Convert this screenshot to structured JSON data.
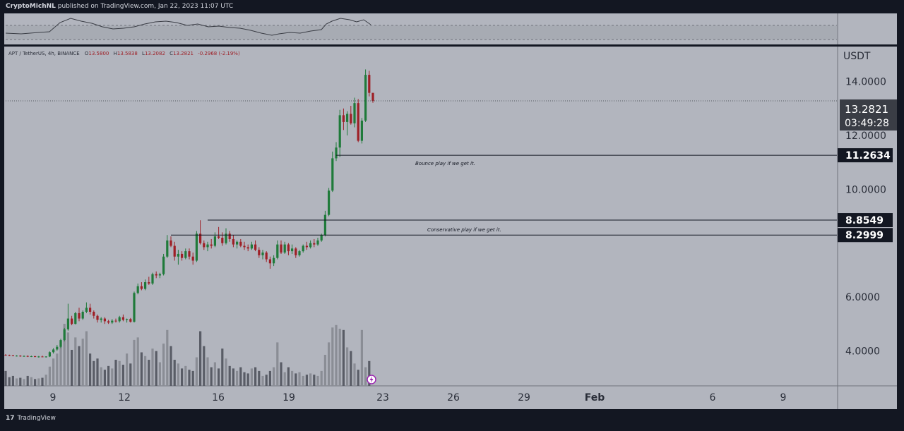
{
  "header": {
    "author": "CryptoMichNL",
    "published_text": "published on TradingView.com, Jan 22, 2023 11:07 UTC"
  },
  "footer": {
    "brand": "TradingView"
  },
  "symbol_line": {
    "label": "APT / TetherUS, 4h, BINANCE",
    "open_label": "O",
    "open": "13.5800",
    "high_label": "H",
    "high": "13.5838",
    "low_label": "L",
    "low": "13.2082",
    "close_label": "C",
    "close": "13.2821",
    "change": "-0.2968 (-2.19%)"
  },
  "colors": {
    "background": "#b2b5be",
    "frame": "#131722",
    "up": "#1f7a3a",
    "down": "#9e1f26",
    "volume_dark": "#595c66",
    "volume_light": "#8a8d95",
    "axis_text": "#2a2e39",
    "badge_bg": "#131722",
    "badge_text": "#ffffff"
  },
  "chart_data": {
    "type": "candlestick",
    "currency": "USDT",
    "y_ticks": [
      "14.0000",
      "12.0000",
      "10.0000",
      "6.0000",
      "4.0000"
    ],
    "x_ticks": [
      "9",
      "12",
      "16",
      "19",
      "23",
      "26",
      "29",
      "Feb",
      "6",
      "9"
    ],
    "ylim": [
      2.7,
      15.3
    ],
    "last_price": {
      "value": "13.2821",
      "countdown": "03:49:28"
    },
    "levels": [
      {
        "value": 11.2634,
        "label": "11.2634",
        "note": "Bounce play if we get it."
      },
      {
        "value": 8.8549,
        "label": "8.8549",
        "note": ""
      },
      {
        "value": 8.2999,
        "label": "8.2999",
        "note": "Conservative play if we get it."
      }
    ],
    "candles": [
      [
        3.85,
        3.88,
        3.82,
        3.84
      ],
      [
        3.84,
        3.86,
        3.8,
        3.83
      ],
      [
        3.83,
        3.85,
        3.8,
        3.81
      ],
      [
        3.81,
        3.84,
        3.79,
        3.82
      ],
      [
        3.82,
        3.84,
        3.78,
        3.8
      ],
      [
        3.8,
        3.83,
        3.78,
        3.81
      ],
      [
        3.81,
        3.83,
        3.77,
        3.79
      ],
      [
        3.79,
        3.82,
        3.77,
        3.8
      ],
      [
        3.8,
        3.82,
        3.76,
        3.78
      ],
      [
        3.78,
        3.81,
        3.75,
        3.79
      ],
      [
        3.79,
        3.82,
        3.76,
        3.78
      ],
      [
        3.78,
        3.8,
        3.75,
        3.79
      ],
      [
        3.79,
        3.98,
        3.77,
        3.95
      ],
      [
        3.95,
        4.1,
        3.9,
        4.05
      ],
      [
        4.05,
        4.22,
        4.0,
        4.15
      ],
      [
        4.15,
        4.45,
        4.1,
        4.4
      ],
      [
        4.4,
        4.85,
        4.35,
        4.8
      ],
      [
        4.8,
        5.75,
        4.75,
        5.2
      ],
      [
        5.2,
        5.3,
        4.95,
        5.0
      ],
      [
        5.0,
        5.45,
        4.98,
        5.4
      ],
      [
        5.4,
        5.6,
        5.1,
        5.2
      ],
      [
        5.2,
        5.5,
        5.15,
        5.45
      ],
      [
        5.45,
        5.8,
        5.4,
        5.6
      ],
      [
        5.6,
        5.75,
        5.35,
        5.45
      ],
      [
        5.45,
        5.5,
        5.2,
        5.3
      ],
      [
        5.3,
        5.35,
        5.05,
        5.15
      ],
      [
        5.15,
        5.25,
        5.05,
        5.2
      ],
      [
        5.2,
        5.25,
        5.0,
        5.1
      ],
      [
        5.1,
        5.15,
        5.0,
        5.05
      ],
      [
        5.05,
        5.18,
        5.0,
        5.12
      ],
      [
        5.12,
        5.2,
        5.05,
        5.1
      ],
      [
        5.1,
        5.3,
        5.05,
        5.25
      ],
      [
        5.25,
        5.35,
        5.1,
        5.15
      ],
      [
        5.15,
        5.2,
        5.05,
        5.18
      ],
      [
        5.18,
        5.22,
        5.05,
        5.08
      ],
      [
        5.08,
        6.2,
        5.05,
        6.15
      ],
      [
        6.15,
        6.5,
        6.1,
        6.4
      ],
      [
        6.4,
        6.55,
        6.25,
        6.3
      ],
      [
        6.3,
        6.65,
        6.25,
        6.55
      ],
      [
        6.55,
        6.75,
        6.45,
        6.5
      ],
      [
        6.5,
        6.9,
        6.45,
        6.85
      ],
      [
        6.85,
        6.95,
        6.7,
        6.8
      ],
      [
        6.8,
        6.9,
        6.7,
        6.85
      ],
      [
        6.85,
        7.6,
        6.8,
        7.5
      ],
      [
        7.5,
        8.3,
        7.45,
        8.1
      ],
      [
        8.1,
        8.25,
        7.85,
        7.9
      ],
      [
        7.9,
        8.05,
        7.35,
        7.5
      ],
      [
        7.5,
        7.75,
        7.2,
        7.6
      ],
      [
        7.6,
        7.7,
        7.35,
        7.45
      ],
      [
        7.45,
        7.8,
        7.4,
        7.7
      ],
      [
        7.7,
        7.8,
        7.4,
        7.5
      ],
      [
        7.5,
        7.65,
        7.2,
        7.35
      ],
      [
        7.35,
        8.45,
        7.3,
        8.35
      ],
      [
        8.35,
        8.85,
        7.95,
        8.0
      ],
      [
        8.0,
        8.1,
        7.75,
        7.85
      ],
      [
        7.85,
        8.05,
        7.7,
        7.95
      ],
      [
        7.95,
        8.15,
        7.8,
        7.9
      ],
      [
        7.9,
        8.4,
        7.85,
        8.25
      ],
      [
        8.25,
        8.6,
        8.15,
        8.2
      ],
      [
        8.2,
        8.4,
        7.9,
        8.0
      ],
      [
        8.0,
        8.55,
        7.95,
        8.35
      ],
      [
        8.35,
        8.45,
        8.05,
        8.15
      ],
      [
        8.15,
        8.3,
        7.85,
        7.95
      ],
      [
        7.95,
        8.1,
        7.8,
        8.05
      ],
      [
        8.05,
        8.15,
        7.85,
        7.9
      ],
      [
        7.9,
        8.05,
        7.75,
        7.85
      ],
      [
        7.85,
        7.95,
        7.7,
        7.8
      ],
      [
        7.8,
        8.05,
        7.75,
        7.95
      ],
      [
        7.95,
        8.1,
        7.7,
        7.75
      ],
      [
        7.75,
        7.85,
        7.45,
        7.55
      ],
      [
        7.55,
        7.75,
        7.4,
        7.65
      ],
      [
        7.65,
        7.7,
        7.3,
        7.4
      ],
      [
        7.4,
        7.5,
        7.05,
        7.25
      ],
      [
        7.25,
        7.55,
        7.15,
        7.45
      ],
      [
        7.45,
        8.1,
        7.4,
        7.95
      ],
      [
        7.95,
        8.1,
        7.6,
        7.65
      ],
      [
        7.65,
        8.05,
        7.6,
        7.95
      ],
      [
        7.95,
        8.0,
        7.55,
        7.7
      ],
      [
        7.7,
        7.95,
        7.6,
        7.8
      ],
      [
        7.8,
        7.85,
        7.45,
        7.55
      ],
      [
        7.55,
        7.75,
        7.5,
        7.7
      ],
      [
        7.7,
        7.95,
        7.65,
        7.9
      ],
      [
        7.9,
        8.05,
        7.75,
        7.85
      ],
      [
        7.85,
        8.1,
        7.8,
        8.0
      ],
      [
        8.0,
        8.15,
        7.85,
        7.95
      ],
      [
        7.95,
        8.2,
        7.9,
        8.1
      ],
      [
        8.1,
        8.35,
        8.05,
        8.3
      ],
      [
        8.3,
        9.2,
        8.25,
        9.05
      ],
      [
        9.05,
        10.05,
        9.0,
        9.95
      ],
      [
        9.95,
        11.4,
        9.9,
        11.15
      ],
      [
        11.15,
        11.75,
        11.05,
        11.55
      ],
      [
        11.55,
        12.95,
        11.2,
        12.75
      ],
      [
        12.75,
        13.0,
        12.2,
        12.5
      ],
      [
        12.5,
        12.9,
        12.0,
        12.8
      ],
      [
        12.8,
        13.1,
        12.4,
        12.45
      ],
      [
        12.45,
        13.4,
        12.3,
        13.2
      ],
      [
        13.2,
        13.35,
        11.75,
        11.8
      ],
      [
        11.8,
        12.65,
        11.7,
        12.55
      ],
      [
        12.55,
        14.45,
        12.5,
        14.25
      ],
      [
        14.25,
        14.4,
        13.45,
        13.58
      ],
      [
        13.58,
        13.58,
        13.21,
        13.28
      ]
    ],
    "volumes": [
      0.24,
      0.14,
      0.16,
      0.12,
      0.13,
      0.11,
      0.16,
      0.14,
      0.11,
      0.12,
      0.13,
      0.18,
      0.31,
      0.44,
      0.52,
      0.72,
      1.0,
      0.86,
      0.58,
      0.78,
      0.64,
      0.76,
      0.88,
      0.52,
      0.4,
      0.44,
      0.3,
      0.26,
      0.32,
      0.28,
      0.42,
      0.4,
      0.34,
      0.52,
      0.36,
      0.74,
      0.78,
      0.54,
      0.48,
      0.42,
      0.6,
      0.56,
      0.38,
      0.68,
      0.9,
      0.64,
      0.42,
      0.36,
      0.28,
      0.32,
      0.26,
      0.24,
      0.46,
      0.88,
      0.64,
      0.46,
      0.3,
      0.38,
      0.28,
      0.6,
      0.44,
      0.32,
      0.28,
      0.24,
      0.3,
      0.22,
      0.2,
      0.28,
      0.3,
      0.24,
      0.16,
      0.18,
      0.24,
      0.3,
      0.7,
      0.38,
      0.22,
      0.3,
      0.24,
      0.2,
      0.22,
      0.16,
      0.18,
      0.2,
      0.18,
      0.16,
      0.24,
      0.5,
      0.7,
      0.94,
      0.98,
      0.92,
      0.9,
      0.62,
      0.56,
      0.36,
      0.26,
      0.9,
      0.3,
      0.4
    ]
  }
}
